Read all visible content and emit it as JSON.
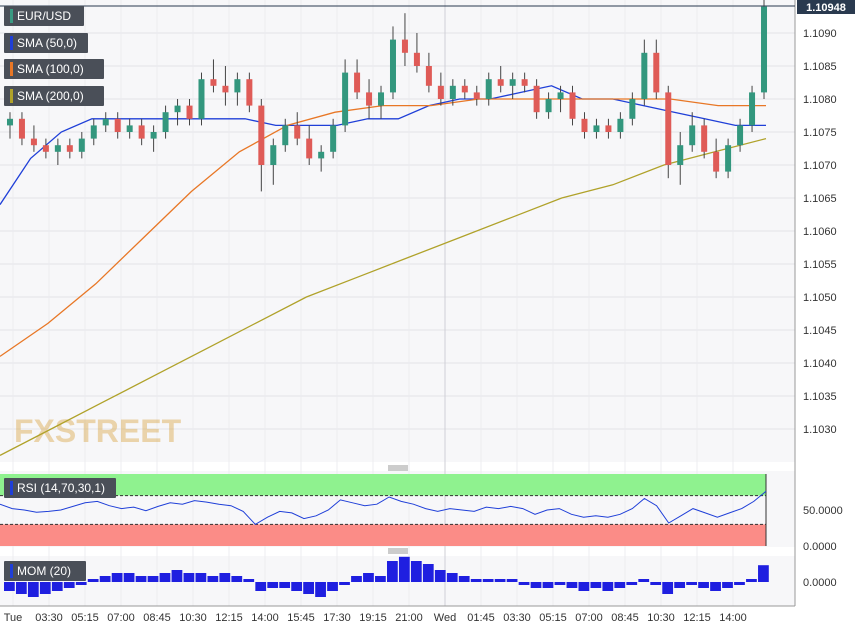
{
  "chart_data": {
    "type": "candlestick",
    "symbol": "EUR/USD",
    "current_price_label": "1.10948",
    "price_axis": {
      "range": [
        1.1025,
        1.1095
      ],
      "ticks": [
        "1.1090",
        "1.1085",
        "1.1080",
        "1.1075",
        "1.1070",
        "1.1065",
        "1.1060",
        "1.1055",
        "1.1050",
        "1.1045",
        "1.1040",
        "1.1035",
        "1.1030"
      ]
    },
    "time_axis": {
      "labels": [
        "Tue",
        "03:30",
        "05:15",
        "07:00",
        "08:45",
        "10:30",
        "12:15",
        "14:00",
        "15:45",
        "17:30",
        "19:15",
        "21:00",
        "Wed",
        "01:45",
        "03:30",
        "05:15",
        "07:00",
        "08:45",
        "10:30",
        "12:15",
        "14:00"
      ]
    },
    "candles_ohlc": [
      [
        1.1076,
        1.1078,
        1.1074,
        1.1077
      ],
      [
        1.1077,
        1.1078,
        1.1073,
        1.1074
      ],
      [
        1.1074,
        1.1076,
        1.1072,
        1.1073
      ],
      [
        1.1073,
        1.1074,
        1.1071,
        1.1072
      ],
      [
        1.1072,
        1.1074,
        1.107,
        1.1073
      ],
      [
        1.1073,
        1.1074,
        1.1071,
        1.1072
      ],
      [
        1.1072,
        1.1075,
        1.1071,
        1.1074
      ],
      [
        1.1074,
        1.1077,
        1.1073,
        1.1076
      ],
      [
        1.1076,
        1.1078,
        1.1075,
        1.1077
      ],
      [
        1.1077,
        1.1078,
        1.1074,
        1.1075
      ],
      [
        1.1075,
        1.1077,
        1.1074,
        1.1076
      ],
      [
        1.1076,
        1.1077,
        1.1073,
        1.1074
      ],
      [
        1.1074,
        1.1076,
        1.1072,
        1.1075
      ],
      [
        1.1075,
        1.1079,
        1.1074,
        1.1078
      ],
      [
        1.1078,
        1.108,
        1.1076,
        1.1079
      ],
      [
        1.1079,
        1.108,
        1.1076,
        1.1077
      ],
      [
        1.1077,
        1.1084,
        1.1076,
        1.1083
      ],
      [
        1.1083,
        1.1086,
        1.1081,
        1.1082
      ],
      [
        1.1082,
        1.1085,
        1.1079,
        1.1081
      ],
      [
        1.1081,
        1.1084,
        1.1079,
        1.1083
      ],
      [
        1.1083,
        1.1084,
        1.1078,
        1.1079
      ],
      [
        1.1079,
        1.108,
        1.1066,
        1.107
      ],
      [
        1.107,
        1.1074,
        1.1067,
        1.1073
      ],
      [
        1.1073,
        1.1077,
        1.1072,
        1.1076
      ],
      [
        1.1076,
        1.1078,
        1.1073,
        1.1074
      ],
      [
        1.1074,
        1.1076,
        1.107,
        1.1071
      ],
      [
        1.1071,
        1.1073,
        1.1069,
        1.1072
      ],
      [
        1.1072,
        1.1077,
        1.1071,
        1.1076
      ],
      [
        1.1076,
        1.1086,
        1.1075,
        1.1084
      ],
      [
        1.1084,
        1.1086,
        1.108,
        1.1081
      ],
      [
        1.1081,
        1.1083,
        1.1077,
        1.1079
      ],
      [
        1.1079,
        1.1082,
        1.1077,
        1.1081
      ],
      [
        1.1081,
        1.1091,
        1.108,
        1.1089
      ],
      [
        1.1089,
        1.1093,
        1.1085,
        1.1087
      ],
      [
        1.1087,
        1.109,
        1.1084,
        1.1085
      ],
      [
        1.1085,
        1.1087,
        1.1081,
        1.1082
      ],
      [
        1.1082,
        1.1084,
        1.1079,
        1.108
      ],
      [
        1.108,
        1.1083,
        1.1079,
        1.1082
      ],
      [
        1.1082,
        1.1083,
        1.108,
        1.1081
      ],
      [
        1.1081,
        1.1082,
        1.1079,
        1.108
      ],
      [
        1.108,
        1.1084,
        1.1079,
        1.1083
      ],
      [
        1.1083,
        1.1085,
        1.1081,
        1.1082
      ],
      [
        1.1082,
        1.1084,
        1.108,
        1.1083
      ],
      [
        1.1083,
        1.1084,
        1.1081,
        1.1082
      ],
      [
        1.1082,
        1.1083,
        1.1077,
        1.1078
      ],
      [
        1.1078,
        1.1081,
        1.1077,
        1.108
      ],
      [
        1.108,
        1.1082,
        1.1078,
        1.1081
      ],
      [
        1.1081,
        1.1082,
        1.1076,
        1.1077
      ],
      [
        1.1077,
        1.1078,
        1.1074,
        1.1075
      ],
      [
        1.1075,
        1.1077,
        1.1074,
        1.1076
      ],
      [
        1.1076,
        1.1077,
        1.1074,
        1.1075
      ],
      [
        1.1075,
        1.1078,
        1.1074,
        1.1077
      ],
      [
        1.1077,
        1.1081,
        1.1076,
        1.108
      ],
      [
        1.108,
        1.1089,
        1.1079,
        1.1087
      ],
      [
        1.1087,
        1.1089,
        1.108,
        1.1081
      ],
      [
        1.1081,
        1.1082,
        1.1068,
        1.107
      ],
      [
        1.107,
        1.1075,
        1.1067,
        1.1073
      ],
      [
        1.1073,
        1.1078,
        1.1072,
        1.1076
      ],
      [
        1.1076,
        1.1077,
        1.1071,
        1.1072
      ],
      [
        1.1072,
        1.1074,
        1.1068,
        1.1069
      ],
      [
        1.1069,
        1.1074,
        1.1068,
        1.1073
      ],
      [
        1.1073,
        1.1077,
        1.1072,
        1.1076
      ],
      [
        1.1076,
        1.1082,
        1.1075,
        1.1081
      ],
      [
        1.1081,
        1.1095,
        1.108,
        1.1094
      ]
    ],
    "series": [
      {
        "name": "SMA (50,0)",
        "color": "#1f3fd8",
        "values": [
          1.1064,
          1.1071,
          1.1075,
          1.1077,
          1.1077,
          1.1077,
          1.1077,
          1.1077,
          1.1077,
          1.1076,
          1.1076,
          1.1076,
          1.1077,
          1.1077,
          1.1079,
          1.108,
          1.108,
          1.1081,
          1.1082,
          1.108,
          1.108,
          1.1079,
          1.1078,
          1.1077,
          1.1076,
          1.1076
        ]
      },
      {
        "name": "SMA (100,0)",
        "color": "#e87726",
        "values": [
          1.1041,
          1.1046,
          1.1052,
          1.1059,
          1.1066,
          1.1072,
          1.1076,
          1.1078,
          1.1079,
          1.1079,
          1.108,
          1.108,
          1.108,
          1.108,
          1.108,
          1.1079,
          1.1079
        ]
      },
      {
        "name": "SMA (200,0)",
        "color": "#b0a22a",
        "values": [
          1.1026,
          1.103,
          1.1034,
          1.1038,
          1.1042,
          1.1046,
          1.105,
          1.1053,
          1.1056,
          1.1059,
          1.1062,
          1.1065,
          1.1067,
          1.107,
          1.1072,
          1.1074
        ]
      }
    ],
    "rsi": {
      "name": "RSI (14,70,30,1)",
      "overbought": 70,
      "oversold": 30,
      "tick_label": "50.0000",
      "zero_label": "0.0000",
      "values": [
        58,
        52,
        50,
        47,
        48,
        50,
        55,
        60,
        62,
        56,
        52,
        54,
        49,
        55,
        60,
        58,
        63,
        61,
        58,
        56,
        48,
        30,
        40,
        48,
        46,
        38,
        42,
        50,
        64,
        60,
        56,
        58,
        68,
        62,
        58,
        52,
        48,
        52,
        50,
        48,
        54,
        52,
        55,
        52,
        44,
        50,
        52,
        44,
        40,
        42,
        40,
        44,
        52,
        66,
        56,
        32,
        42,
        52,
        46,
        40,
        46,
        52,
        62,
        76
      ]
    },
    "momentum": {
      "name": "MOM (20)",
      "zero_label": "0.0000",
      "values": [
        -1.5,
        -2,
        -2.5,
        -2,
        -1.5,
        -1,
        -0.5,
        0.5,
        1,
        1.5,
        1.5,
        1,
        1,
        1.5,
        2,
        1.5,
        1.5,
        1,
        1.5,
        1,
        0.5,
        -1.5,
        -1,
        -1,
        -1.5,
        -2,
        -2.5,
        -1.5,
        -0.5,
        1,
        1.5,
        1,
        3.5,
        4.2,
        3.5,
        3,
        2,
        1.5,
        1,
        0.5,
        0.5,
        0.5,
        0.5,
        -0.5,
        -1,
        -1,
        -0.5,
        -1,
        -1.5,
        -1,
        -1.5,
        -1,
        -0.5,
        0.5,
        -0.5,
        -2,
        -1,
        -0.5,
        -1,
        -1.5,
        -1,
        -0.5,
        0.5,
        2.8
      ]
    },
    "watermark": "FXSTREET",
    "grid": true
  }
}
